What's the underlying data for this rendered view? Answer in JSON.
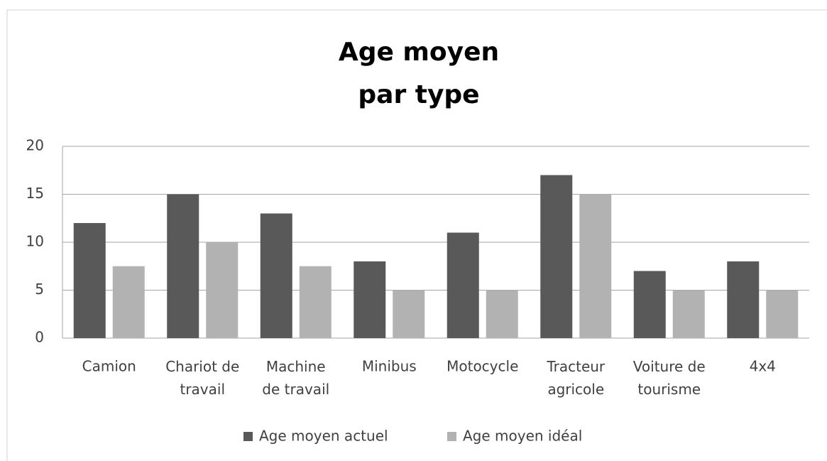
{
  "chart_data": {
    "type": "bar",
    "title": "Age moyen\npar type",
    "categories": [
      "Camion",
      "Chariot de\ntravail",
      "Machine\nde travail",
      "Minibus",
      "Motocycle",
      "Tracteur\nagricole",
      "Voiture de\ntourisme",
      "4x4"
    ],
    "series": [
      {
        "name": "Age moyen actuel",
        "color": "#595959",
        "values": [
          12,
          15,
          13,
          8,
          11,
          17,
          7,
          8
        ]
      },
      {
        "name": "Age moyen idéal",
        "color": "#b2b2b2",
        "values": [
          7.5,
          10,
          7.5,
          5,
          5,
          15,
          5,
          5
        ]
      }
    ],
    "ylim": [
      0,
      20
    ],
    "yticks": [
      0,
      5,
      10,
      15,
      20
    ],
    "grid": true,
    "legend": "bottom"
  }
}
